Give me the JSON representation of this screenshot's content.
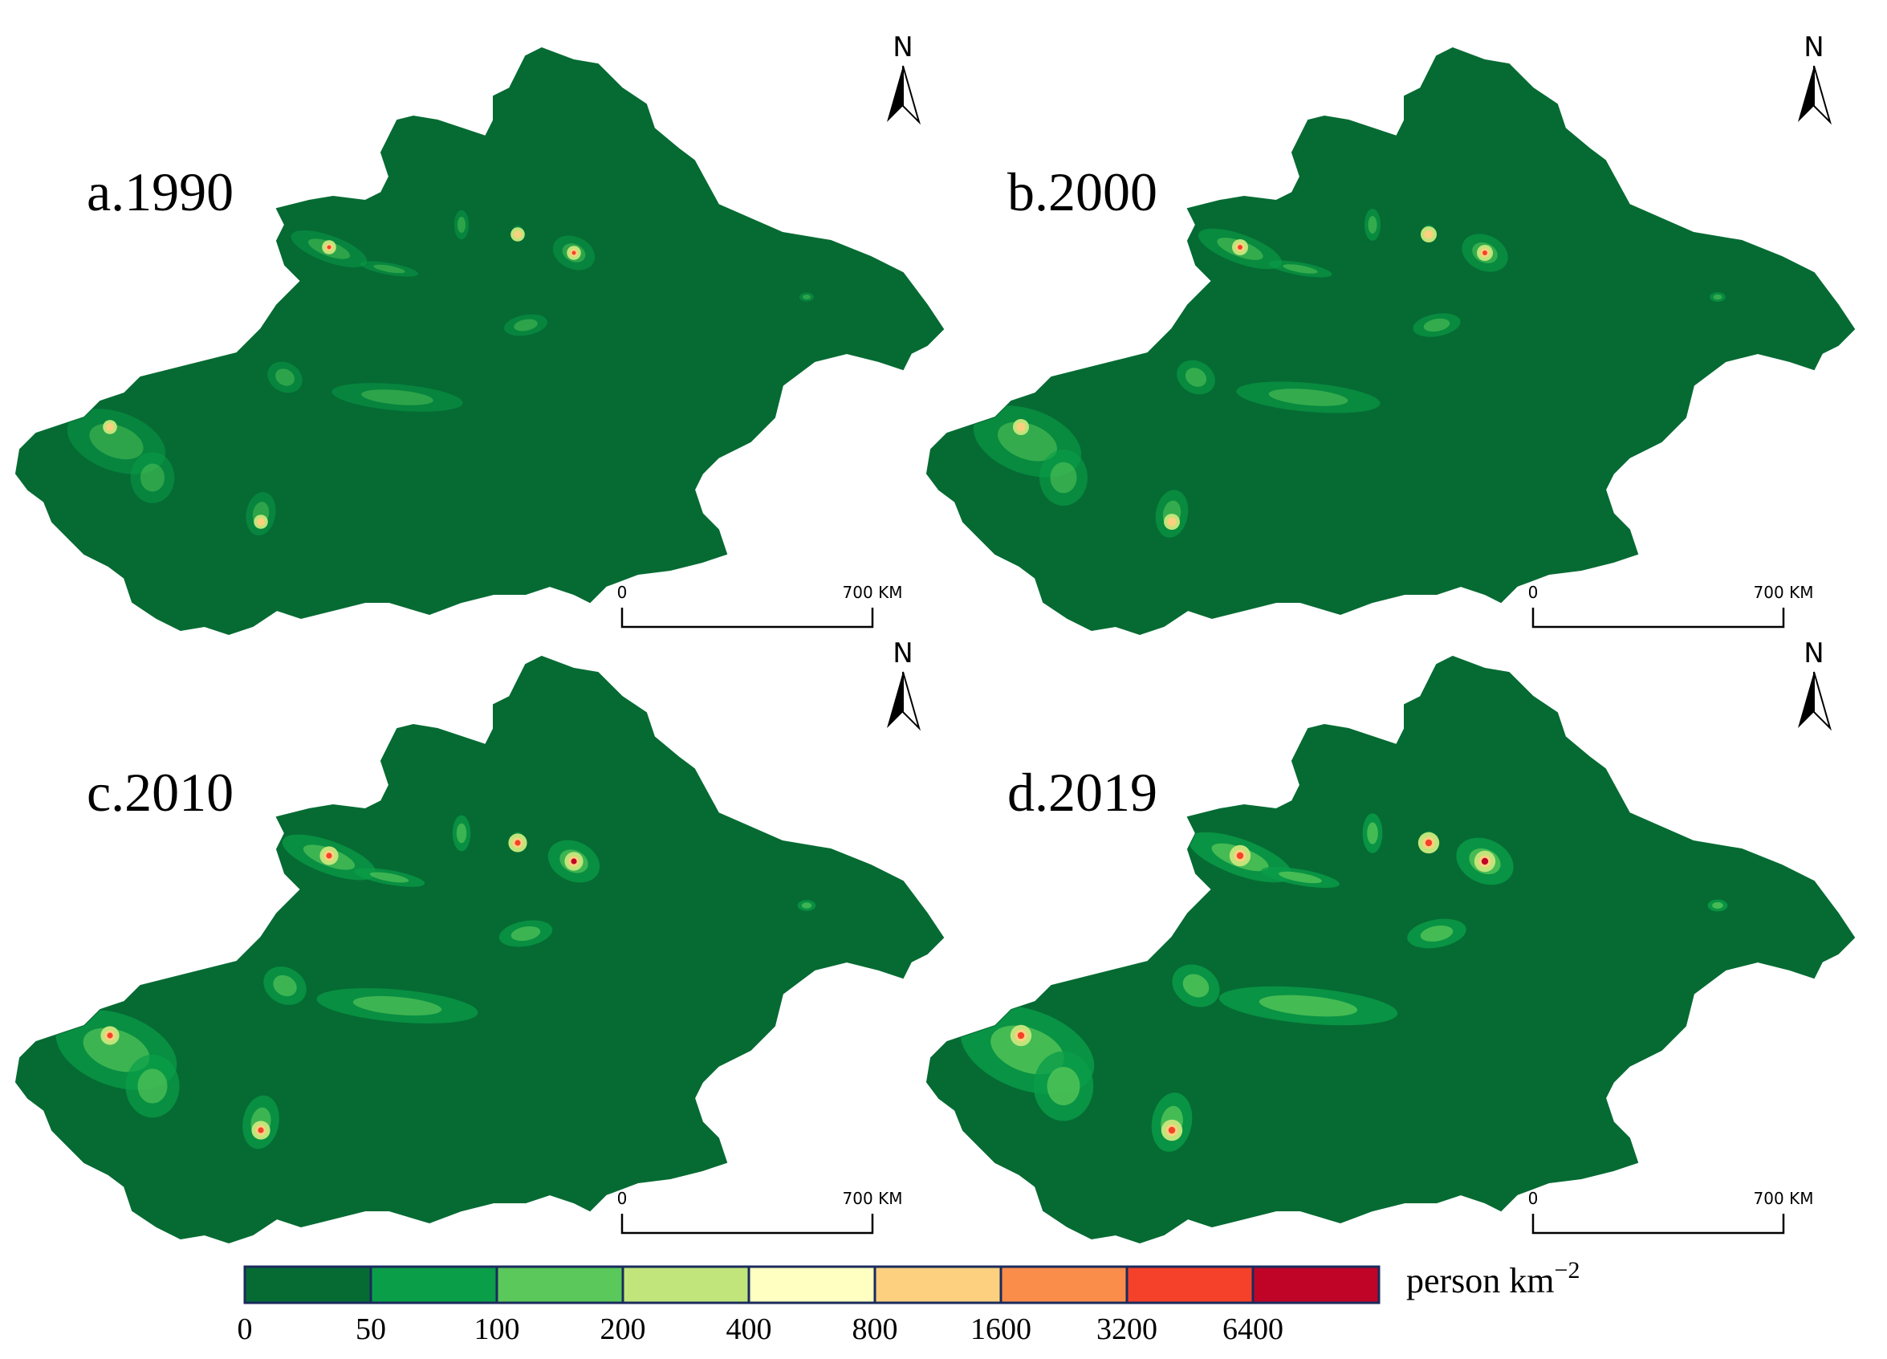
{
  "panels": [
    {
      "label": "a.1990"
    },
    {
      "label": "b.2000"
    },
    {
      "label": "c.2010"
    },
    {
      "label": "d.2019"
    }
  ],
  "north_arrow": {
    "letter": "N"
  },
  "scale_bar": {
    "start": "0",
    "end": "700 KM"
  },
  "legend": {
    "unit_text": "person km",
    "unit_exponent": "−2",
    "ticks": [
      "0",
      "50",
      "100",
      "200",
      "400",
      "800",
      "1600",
      "3200",
      "6400"
    ],
    "colors": [
      "#056b33",
      "#0a9e48",
      "#5ac85a",
      "#c1e57b",
      "#ffffc1",
      "#fcd07f",
      "#fa8d4a",
      "#f5412a",
      "#bf0428"
    ]
  },
  "map_style": {
    "land_color": "#056b33",
    "hotspots_by_panel": [
      {
        "panel": "a.1990",
        "intensity": 0.35
      },
      {
        "panel": "b.2000",
        "intensity": 0.5
      },
      {
        "panel": "c.2010",
        "intensity": 0.7
      },
      {
        "panel": "d.2019",
        "intensity": 0.9
      }
    ]
  }
}
